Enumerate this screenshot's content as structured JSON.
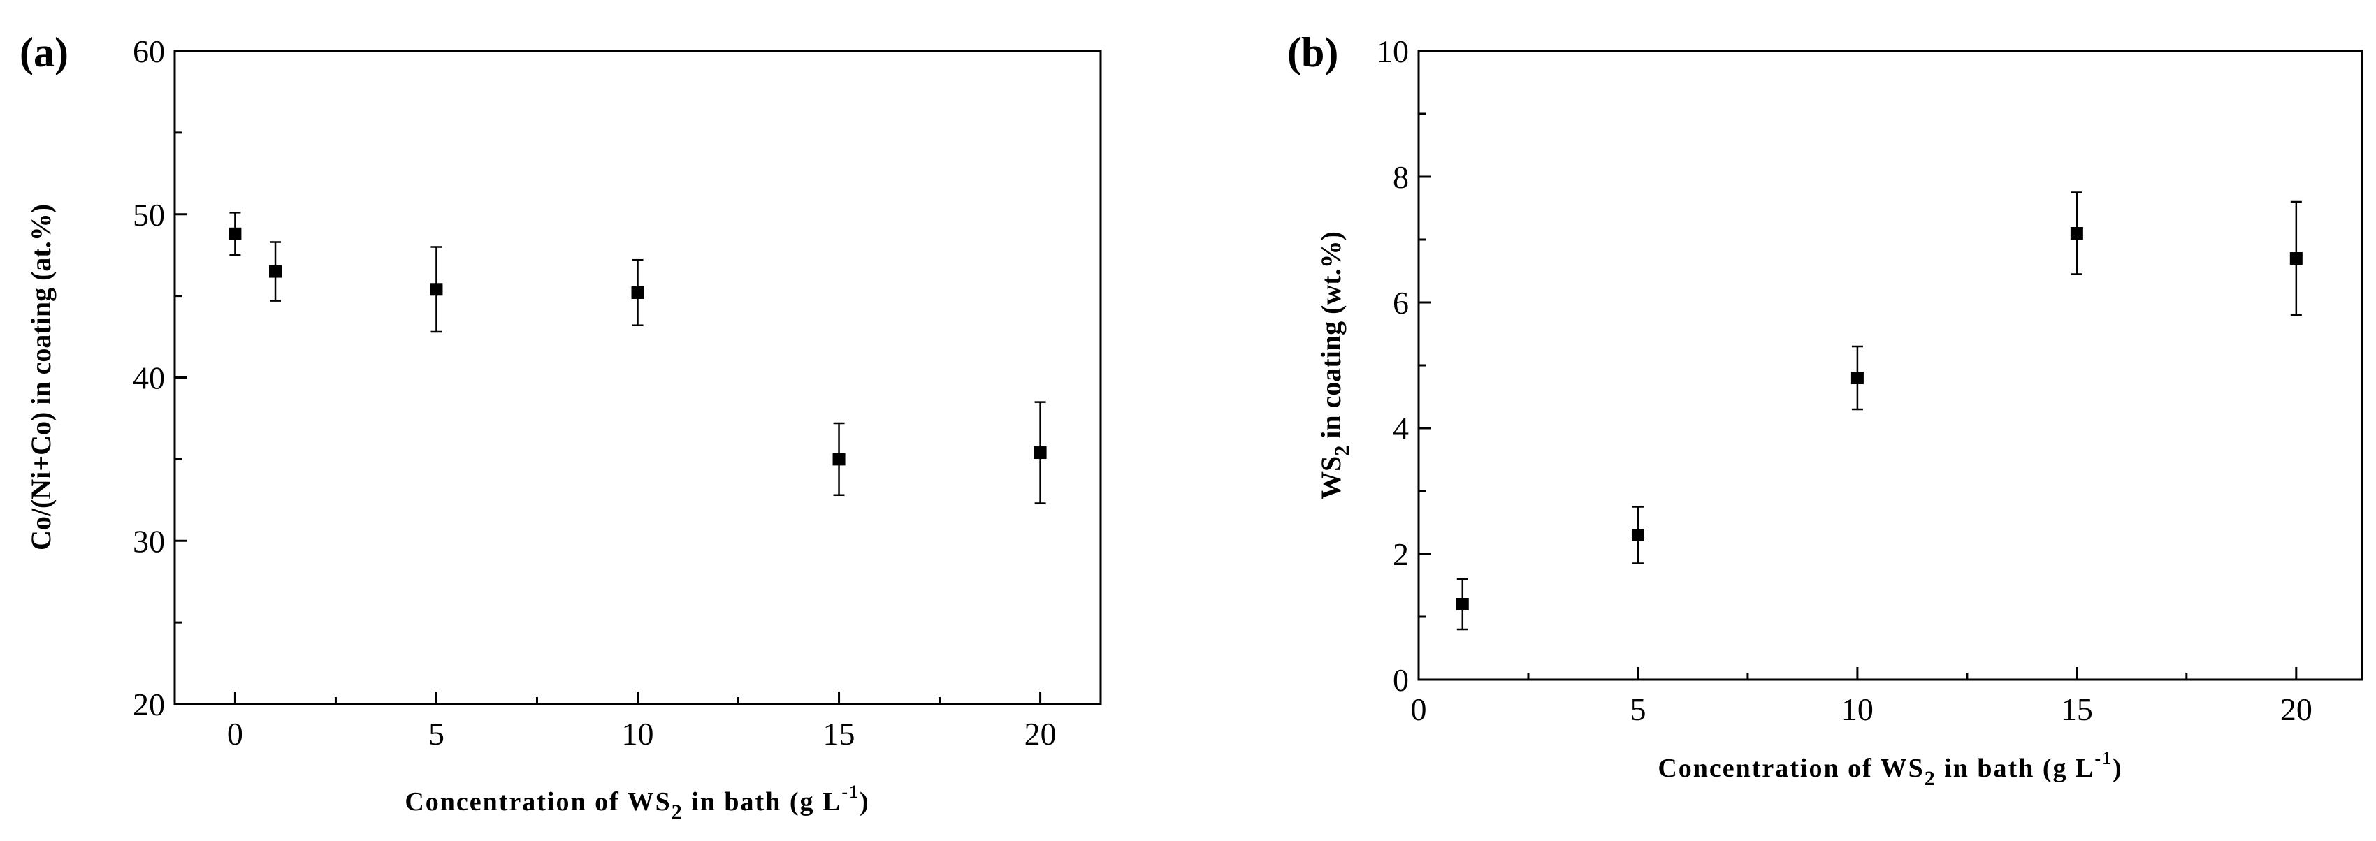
{
  "chart_data": [
    {
      "type": "scatter",
      "panel_label": "(a)",
      "xlabel": {
        "main": "Concentration of WS",
        "sub": "2",
        "tail": " in bath (g L",
        "sup": "-1",
        "end": ")"
      },
      "ylabel": {
        "main": "Co/(Ni+Co) in coating (at.%)"
      },
      "xlim": [
        -1.5,
        21.5
      ],
      "ylim": [
        20,
        60
      ],
      "xticks": [
        0,
        5,
        10,
        15,
        20
      ],
      "xticks_minor": [
        2.5,
        7.5,
        12.5,
        17.5
      ],
      "yticks": [
        20,
        30,
        40,
        50,
        60
      ],
      "yticks_minor": [
        25,
        35,
        45,
        55
      ],
      "series": [
        {
          "marker": "square",
          "color": "#000000",
          "points": [
            {
              "x": 0,
              "y": 48.8,
              "err": 1.3
            },
            {
              "x": 1,
              "y": 46.5,
              "err": 1.8
            },
            {
              "x": 5,
              "y": 45.4,
              "err": 2.6
            },
            {
              "x": 10,
              "y": 45.2,
              "err": 2.0
            },
            {
              "x": 15,
              "y": 35.0,
              "err": 2.2
            },
            {
              "x": 20,
              "y": 35.4,
              "err": 3.1
            }
          ]
        }
      ],
      "grid": false,
      "legend": "none"
    },
    {
      "type": "scatter",
      "panel_label": "(b)",
      "xlabel": {
        "main": "Concentration of WS",
        "sub": "2",
        "tail": " in bath (g L",
        "sup": "-1",
        "end": ")"
      },
      "ylabel": {
        "main": "WS",
        "sub": "2",
        "tail": " in coating (wt.%)"
      },
      "xlim": [
        0,
        21.5
      ],
      "ylim": [
        0,
        10
      ],
      "xticks": [
        0,
        5,
        10,
        15,
        20
      ],
      "xticks_minor": [
        2.5,
        7.5,
        12.5,
        17.5
      ],
      "yticks": [
        0,
        2,
        4,
        6,
        8,
        10
      ],
      "yticks_minor": [
        1,
        3,
        5,
        7,
        9
      ],
      "series": [
        {
          "marker": "square",
          "color": "#000000",
          "points": [
            {
              "x": 1,
              "y": 1.2,
              "err": 0.4
            },
            {
              "x": 5,
              "y": 2.3,
              "err": 0.45
            },
            {
              "x": 10,
              "y": 4.8,
              "err": 0.5
            },
            {
              "x": 15,
              "y": 7.1,
              "err": 0.65
            },
            {
              "x": 20,
              "y": 6.7,
              "err": 0.9
            }
          ]
        }
      ],
      "grid": false,
      "legend": "none"
    }
  ]
}
